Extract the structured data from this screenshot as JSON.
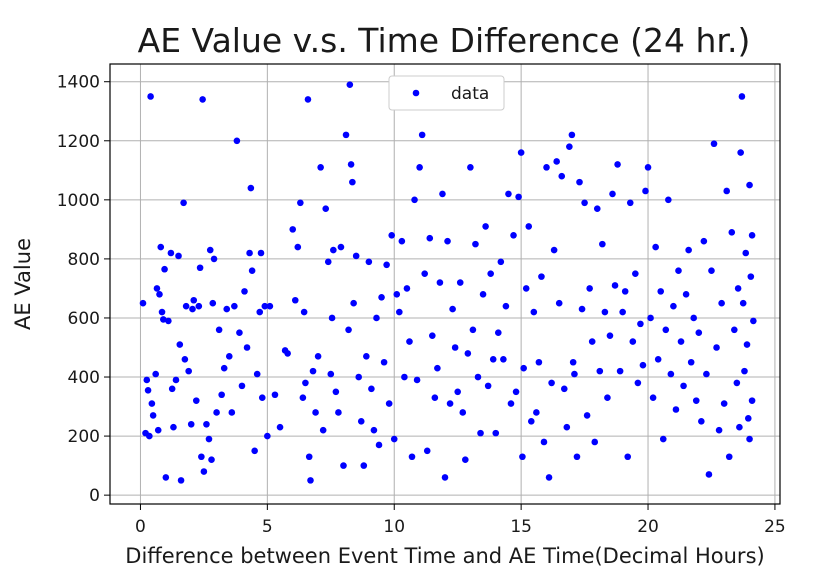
{
  "chart_data": {
    "type": "scatter",
    "title": "AE Value v.s. Time Difference (24 hr.)",
    "xlabel": "Difference between Event Time and AE Time(Decimal Hours)",
    "ylabel": "AE Value",
    "xlim": [
      -1.2,
      25.2
    ],
    "ylim": [
      -30,
      1460
    ],
    "xticks": [
      0,
      5,
      10,
      15,
      20,
      25
    ],
    "yticks": [
      0,
      200,
      400,
      600,
      800,
      1000,
      1200,
      1400
    ],
    "grid": true,
    "legend": {
      "position": "top-center",
      "entries": [
        "data"
      ]
    },
    "series": [
      {
        "name": "data",
        "color": "#0000ff",
        "marker": "circle",
        "points": [
          [
            0.1,
            650
          ],
          [
            0.2,
            210
          ],
          [
            0.25,
            390
          ],
          [
            0.3,
            355
          ],
          [
            0.35,
            200
          ],
          [
            0.4,
            1350
          ],
          [
            0.45,
            310
          ],
          [
            0.5,
            270
          ],
          [
            0.6,
            410
          ],
          [
            0.65,
            700
          ],
          [
            0.7,
            220
          ],
          [
            0.75,
            680
          ],
          [
            0.8,
            840
          ],
          [
            0.85,
            620
          ],
          [
            0.9,
            595
          ],
          [
            0.95,
            765
          ],
          [
            1.0,
            60
          ],
          [
            1.1,
            590
          ],
          [
            1.2,
            820
          ],
          [
            1.25,
            360
          ],
          [
            1.3,
            230
          ],
          [
            1.4,
            390
          ],
          [
            1.5,
            810
          ],
          [
            1.55,
            510
          ],
          [
            1.6,
            50
          ],
          [
            1.7,
            990
          ],
          [
            1.75,
            460
          ],
          [
            1.8,
            640
          ],
          [
            1.9,
            420
          ],
          [
            2.0,
            240
          ],
          [
            2.05,
            630
          ],
          [
            2.1,
            660
          ],
          [
            2.2,
            320
          ],
          [
            2.3,
            640
          ],
          [
            2.35,
            770
          ],
          [
            2.4,
            130
          ],
          [
            2.45,
            1340
          ],
          [
            2.5,
            80
          ],
          [
            2.6,
            240
          ],
          [
            2.7,
            190
          ],
          [
            2.75,
            830
          ],
          [
            2.8,
            120
          ],
          [
            2.85,
            650
          ],
          [
            2.9,
            800
          ],
          [
            3.0,
            280
          ],
          [
            3.1,
            560
          ],
          [
            3.2,
            340
          ],
          [
            3.3,
            430
          ],
          [
            3.4,
            630
          ],
          [
            3.5,
            470
          ],
          [
            3.6,
            280
          ],
          [
            3.7,
            640
          ],
          [
            3.8,
            1200
          ],
          [
            3.9,
            550
          ],
          [
            4.0,
            370
          ],
          [
            4.1,
            690
          ],
          [
            4.2,
            500
          ],
          [
            4.3,
            820
          ],
          [
            4.35,
            1040
          ],
          [
            4.4,
            760
          ],
          [
            4.5,
            150
          ],
          [
            4.6,
            410
          ],
          [
            4.7,
            620
          ],
          [
            4.75,
            820
          ],
          [
            4.8,
            330
          ],
          [
            4.9,
            640
          ],
          [
            5.0,
            200
          ],
          [
            5.1,
            640
          ],
          [
            5.3,
            340
          ],
          [
            5.5,
            230
          ],
          [
            5.7,
            490
          ],
          [
            5.8,
            480
          ],
          [
            6.0,
            900
          ],
          [
            6.1,
            660
          ],
          [
            6.2,
            840
          ],
          [
            6.3,
            990
          ],
          [
            6.4,
            330
          ],
          [
            6.45,
            620
          ],
          [
            6.5,
            380
          ],
          [
            6.6,
            1340
          ],
          [
            6.65,
            130
          ],
          [
            6.7,
            50
          ],
          [
            6.8,
            420
          ],
          [
            6.9,
            280
          ],
          [
            7.0,
            470
          ],
          [
            7.1,
            1110
          ],
          [
            7.2,
            220
          ],
          [
            7.3,
            970
          ],
          [
            7.4,
            790
          ],
          [
            7.5,
            410
          ],
          [
            7.55,
            600
          ],
          [
            7.6,
            830
          ],
          [
            7.7,
            350
          ],
          [
            7.8,
            280
          ],
          [
            7.9,
            840
          ],
          [
            8.0,
            100
          ],
          [
            8.1,
            1220
          ],
          [
            8.2,
            560
          ],
          [
            8.25,
            1390
          ],
          [
            8.3,
            1120
          ],
          [
            8.35,
            1060
          ],
          [
            8.4,
            650
          ],
          [
            8.5,
            810
          ],
          [
            8.6,
            400
          ],
          [
            8.7,
            250
          ],
          [
            8.8,
            100
          ],
          [
            8.9,
            470
          ],
          [
            9.0,
            790
          ],
          [
            9.1,
            360
          ],
          [
            9.2,
            220
          ],
          [
            9.3,
            600
          ],
          [
            9.4,
            170
          ],
          [
            9.5,
            670
          ],
          [
            9.6,
            450
          ],
          [
            9.7,
            780
          ],
          [
            9.8,
            310
          ],
          [
            9.9,
            880
          ],
          [
            10.0,
            190
          ],
          [
            10.1,
            680
          ],
          [
            10.2,
            620
          ],
          [
            10.3,
            860
          ],
          [
            10.4,
            400
          ],
          [
            10.5,
            700
          ],
          [
            10.6,
            520
          ],
          [
            10.7,
            130
          ],
          [
            10.8,
            1000
          ],
          [
            10.9,
            390
          ],
          [
            11.0,
            1110
          ],
          [
            11.1,
            1220
          ],
          [
            11.2,
            750
          ],
          [
            11.3,
            150
          ],
          [
            11.4,
            870
          ],
          [
            11.5,
            540
          ],
          [
            11.6,
            330
          ],
          [
            11.7,
            430
          ],
          [
            11.8,
            720
          ],
          [
            11.9,
            1020
          ],
          [
            12.0,
            60
          ],
          [
            12.1,
            860
          ],
          [
            12.2,
            310
          ],
          [
            12.3,
            630
          ],
          [
            12.4,
            500
          ],
          [
            12.5,
            350
          ],
          [
            12.6,
            720
          ],
          [
            12.7,
            280
          ],
          [
            12.8,
            120
          ],
          [
            12.9,
            480
          ],
          [
            13.0,
            1110
          ],
          [
            13.1,
            560
          ],
          [
            13.2,
            850
          ],
          [
            13.3,
            400
          ],
          [
            13.4,
            210
          ],
          [
            13.5,
            680
          ],
          [
            13.6,
            910
          ],
          [
            13.7,
            370
          ],
          [
            13.8,
            750
          ],
          [
            13.9,
            460
          ],
          [
            14.0,
            210
          ],
          [
            14.1,
            550
          ],
          [
            14.2,
            790
          ],
          [
            14.3,
            460
          ],
          [
            14.4,
            640
          ],
          [
            14.5,
            1020
          ],
          [
            14.6,
            310
          ],
          [
            14.7,
            880
          ],
          [
            14.8,
            350
          ],
          [
            14.9,
            1010
          ],
          [
            15.0,
            1160
          ],
          [
            15.05,
            130
          ],
          [
            15.1,
            430
          ],
          [
            15.2,
            700
          ],
          [
            15.3,
            910
          ],
          [
            15.4,
            250
          ],
          [
            15.5,
            620
          ],
          [
            15.6,
            280
          ],
          [
            15.7,
            450
          ],
          [
            15.8,
            740
          ],
          [
            15.9,
            180
          ],
          [
            16.0,
            1110
          ],
          [
            16.1,
            60
          ],
          [
            16.2,
            380
          ],
          [
            16.3,
            830
          ],
          [
            16.4,
            1130
          ],
          [
            16.5,
            650
          ],
          [
            16.6,
            1080
          ],
          [
            16.7,
            360
          ],
          [
            16.8,
            230
          ],
          [
            16.9,
            1180
          ],
          [
            17.0,
            1220
          ],
          [
            17.05,
            450
          ],
          [
            17.1,
            410
          ],
          [
            17.2,
            130
          ],
          [
            17.3,
            1060
          ],
          [
            17.4,
            630
          ],
          [
            17.5,
            990
          ],
          [
            17.6,
            270
          ],
          [
            17.7,
            700
          ],
          [
            17.8,
            520
          ],
          [
            17.9,
            180
          ],
          [
            18.0,
            970
          ],
          [
            18.1,
            420
          ],
          [
            18.2,
            850
          ],
          [
            18.3,
            620
          ],
          [
            18.4,
            330
          ],
          [
            18.5,
            540
          ],
          [
            18.6,
            1020
          ],
          [
            18.7,
            710
          ],
          [
            18.8,
            1120
          ],
          [
            18.9,
            420
          ],
          [
            19.0,
            620
          ],
          [
            19.1,
            690
          ],
          [
            19.2,
            130
          ],
          [
            19.3,
            990
          ],
          [
            19.4,
            520
          ],
          [
            19.5,
            750
          ],
          [
            19.6,
            380
          ],
          [
            19.7,
            580
          ],
          [
            19.8,
            440
          ],
          [
            19.9,
            1030
          ],
          [
            20.0,
            1110
          ],
          [
            20.1,
            600
          ],
          [
            20.2,
            330
          ],
          [
            20.3,
            840
          ],
          [
            20.4,
            460
          ],
          [
            20.5,
            690
          ],
          [
            20.6,
            190
          ],
          [
            20.7,
            560
          ],
          [
            20.8,
            1000
          ],
          [
            20.9,
            410
          ],
          [
            21.0,
            640
          ],
          [
            21.1,
            290
          ],
          [
            21.2,
            760
          ],
          [
            21.3,
            520
          ],
          [
            21.4,
            370
          ],
          [
            21.5,
            680
          ],
          [
            21.6,
            830
          ],
          [
            21.7,
            450
          ],
          [
            21.8,
            600
          ],
          [
            21.9,
            320
          ],
          [
            22.0,
            550
          ],
          [
            22.1,
            250
          ],
          [
            22.2,
            860
          ],
          [
            22.3,
            410
          ],
          [
            22.4,
            70
          ],
          [
            22.5,
            760
          ],
          [
            22.6,
            1190
          ],
          [
            22.7,
            500
          ],
          [
            22.8,
            220
          ],
          [
            22.9,
            650
          ],
          [
            23.0,
            310
          ],
          [
            23.1,
            1030
          ],
          [
            23.2,
            130
          ],
          [
            23.3,
            890
          ],
          [
            23.4,
            560
          ],
          [
            23.5,
            380
          ],
          [
            23.55,
            700
          ],
          [
            23.6,
            230
          ],
          [
            23.65,
            1160
          ],
          [
            23.7,
            1350
          ],
          [
            23.75,
            650
          ],
          [
            23.8,
            420
          ],
          [
            23.85,
            820
          ],
          [
            23.9,
            510
          ],
          [
            23.95,
            260
          ],
          [
            24.0,
            1050
          ],
          [
            24.0,
            190
          ],
          [
            24.05,
            740
          ],
          [
            24.1,
            880
          ],
          [
            24.1,
            320
          ],
          [
            24.15,
            590
          ]
        ]
      }
    ]
  }
}
